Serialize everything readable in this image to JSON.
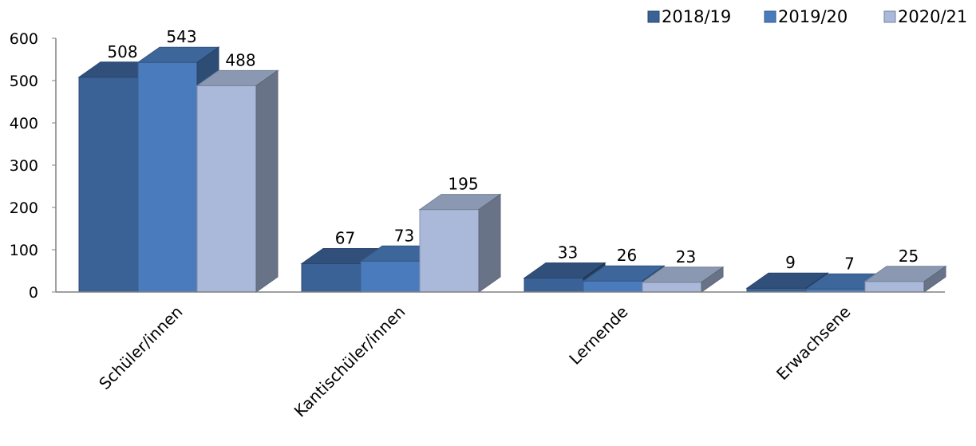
{
  "chart_data": {
    "type": "bar",
    "style": "3d-clustered-column",
    "categories": [
      "Schüler/innen",
      "Kantischüler/innen",
      "Lernende",
      "Erwachsene"
    ],
    "series": [
      {
        "name": "2018/19",
        "values": [
          508,
          67,
          33,
          9
        ],
        "color": "#3a6296"
      },
      {
        "name": "2019/20",
        "values": [
          543,
          73,
          26,
          7
        ],
        "color": "#4a7cbd"
      },
      {
        "name": "2020/21",
        "values": [
          488,
          195,
          23,
          25
        ],
        "color": "#aab9d9"
      }
    ],
    "title": "",
    "xlabel": "",
    "ylabel": "",
    "ylim": [
      0,
      600
    ],
    "yticks": [
      0,
      100,
      200,
      300,
      400,
      500,
      600
    ],
    "grid": false,
    "legend_position": "top-right",
    "data_labels": true
  }
}
